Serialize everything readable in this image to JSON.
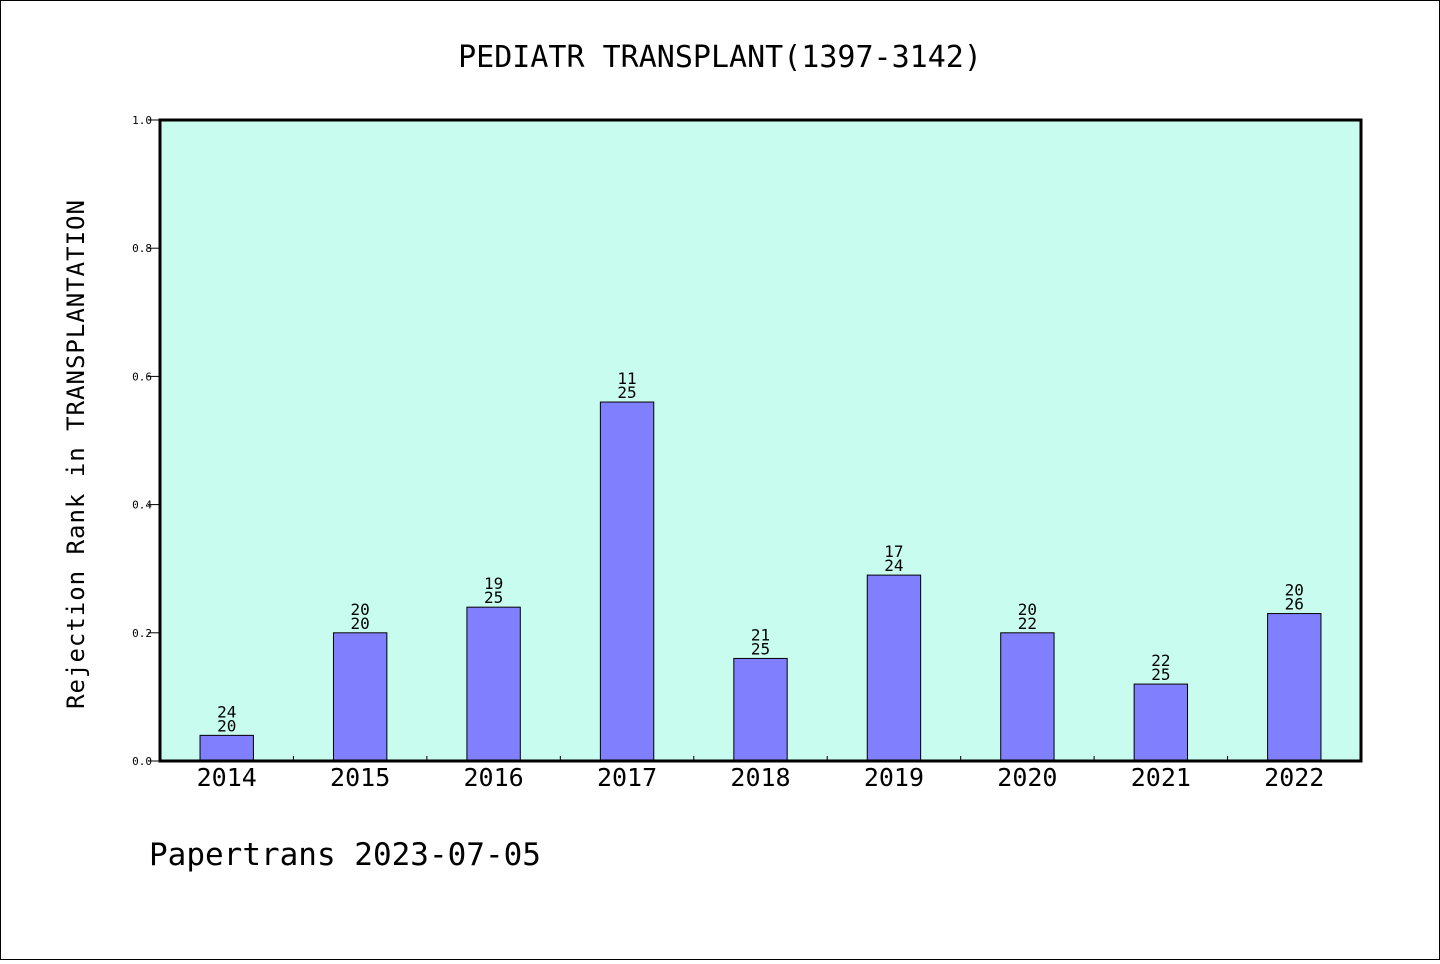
{
  "chart_data": {
    "type": "bar",
    "title": "PEDIATR TRANSPLANT(1397-3142)",
    "ylabel": "Rejection Rank in TRANSPLANTATION",
    "xlabel": "",
    "categories": [
      "2014",
      "2015",
      "2016",
      "2017",
      "2018",
      "2019",
      "2020",
      "2021",
      "2022"
    ],
    "values": [
      0.04,
      0.2,
      0.24,
      0.56,
      0.16,
      0.29,
      0.2,
      0.12,
      0.23
    ],
    "bar_labels_top": [
      "24",
      "20",
      "19",
      "11",
      "21",
      "17",
      "20",
      "22",
      "20"
    ],
    "bar_labels_bottom": [
      "20",
      "20",
      "25",
      "25",
      "25",
      "24",
      "22",
      "25",
      "26"
    ],
    "ylim": [
      0,
      1.0
    ],
    "yticks": [
      "0.0",
      "0.2",
      "0.4",
      "0.6",
      "0.8",
      "1.0"
    ],
    "grid": false,
    "colors": {
      "plot_background": "#c8fcee",
      "bar_fill": "#8080ff",
      "bar_edge": "#000000"
    }
  },
  "footer": {
    "text": "Papertrans 2023-07-05"
  }
}
